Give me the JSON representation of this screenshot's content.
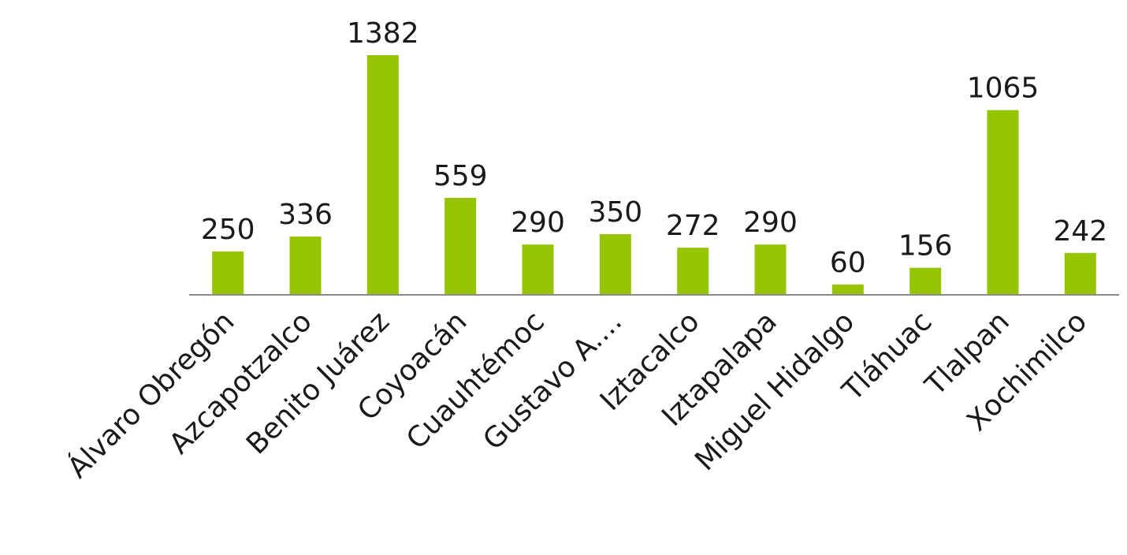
{
  "chart_data": {
    "type": "bar",
    "categories": [
      "Álvaro Obregón",
      "Azcapotzalco",
      "Benito Juárez",
      "Coyoacán",
      "Cuauhtémoc",
      "Gustavo A....",
      "Iztacalco",
      "Iztapalapa",
      "Miguel Hidalgo",
      "Tláhuac",
      "Tlalpan",
      "Xochimilco"
    ],
    "values": [
      250,
      336,
      1382,
      559,
      290,
      350,
      272,
      290,
      60,
      156,
      1065,
      242
    ],
    "title": "",
    "xlabel": "",
    "ylabel": "",
    "ylim": [
      0,
      1400
    ],
    "data_labels": true,
    "grid": false,
    "legend": "none",
    "colors": {
      "bar": "#94c500",
      "axis": "#8c8c8c",
      "text": "#1a1a1a"
    }
  }
}
